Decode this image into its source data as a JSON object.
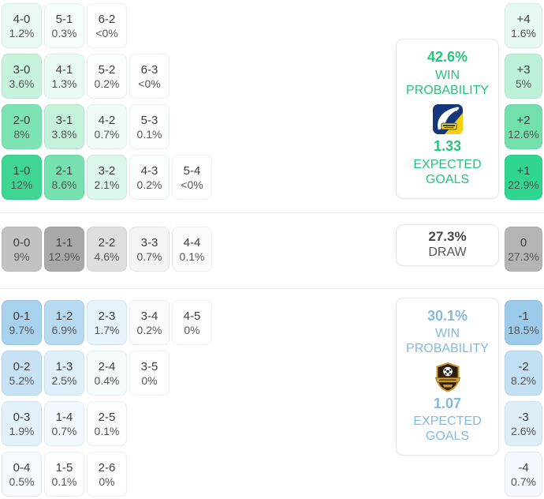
{
  "theme": {
    "home_accent": "#23c57e",
    "away_accent": "#82badf",
    "draw_text": "#474747",
    "separator": "#e9e9e9"
  },
  "home": {
    "card": {
      "probability": "42.6%",
      "probability_label": "WIN PROBABILITY",
      "expected_goals": "1.33",
      "expected_goals_label": "EXPECTED GOALS",
      "logo_icon": "delfin-club-crest"
    },
    "rows": [
      [
        {
          "score": "4-0",
          "pct": "1.2%",
          "bg": "#eafaf2"
        },
        {
          "score": "5-1",
          "pct": "0.3%",
          "bg": "#f8fefb"
        },
        {
          "score": "6-2",
          "pct": "<0%",
          "bg": "#ffffff"
        }
      ],
      [
        {
          "score": "3-0",
          "pct": "3.6%",
          "bg": "#c7f2de"
        },
        {
          "score": "4-1",
          "pct": "1.3%",
          "bg": "#e9faf2"
        },
        {
          "score": "5-2",
          "pct": "0.2%",
          "bg": "#fafefc"
        },
        {
          "score": "6-3",
          "pct": "<0%",
          "bg": "#ffffff"
        }
      ],
      [
        {
          "score": "2-0",
          "pct": "8%",
          "bg": "#7ee3b4"
        },
        {
          "score": "3-1",
          "pct": "3.8%",
          "bg": "#c4f1dc"
        },
        {
          "score": "4-2",
          "pct": "0.7%",
          "bg": "#f1fcf7"
        },
        {
          "score": "5-3",
          "pct": "0.1%",
          "bg": "#fbfefd"
        }
      ],
      [
        {
          "score": "1-0",
          "pct": "12%",
          "bg": "#3fd694"
        },
        {
          "score": "2-1",
          "pct": "8.6%",
          "bg": "#76e1af"
        },
        {
          "score": "3-2",
          "pct": "2.1%",
          "bg": "#dcf6e9"
        },
        {
          "score": "4-3",
          "pct": "0.2%",
          "bg": "#fafefc"
        },
        {
          "score": "5-4",
          "pct": "<0%",
          "bg": "#ffffff"
        }
      ]
    ],
    "goal_diff": [
      {
        "label": "+4",
        "pct": "1.6%",
        "bg": "#e6f9f0"
      },
      {
        "label": "+3",
        "pct": "5%",
        "bg": "#bdf0d8"
      },
      {
        "label": "+2",
        "pct": "12.6%",
        "bg": "#73e0ac"
      },
      {
        "label": "+1",
        "pct": "22.9%",
        "bg": "#2fd68f"
      }
    ]
  },
  "draw": {
    "card": {
      "probability": "27.3%",
      "label": "DRAW"
    },
    "rows": [
      [
        {
          "score": "0-0",
          "pct": "9%",
          "bg": "#c2c2c2"
        },
        {
          "score": "1-1",
          "pct": "12.9%",
          "bg": "#a9a9a9"
        },
        {
          "score": "2-2",
          "pct": "4.6%",
          "bg": "#dedede"
        },
        {
          "score": "3-3",
          "pct": "0.7%",
          "bg": "#f4f4f4"
        },
        {
          "score": "4-4",
          "pct": "0.1%",
          "bg": "#fcfcfc"
        }
      ]
    ],
    "goal_diff": [
      {
        "label": "0",
        "pct": "27.3%",
        "bg": "#b4b4b4"
      }
    ]
  },
  "away": {
    "card": {
      "probability": "30.1%",
      "probability_label": "WIN PROBABILITY",
      "expected_goals": "1.07",
      "expected_goals_label": "EXPECTED GOALS",
      "logo_icon": "gold-shield-club-crest"
    },
    "rows": [
      [
        {
          "score": "0-1",
          "pct": "9.7%",
          "bg": "#a7d1ec"
        },
        {
          "score": "1-2",
          "pct": "6.9%",
          "bg": "#b7daf0"
        },
        {
          "score": "2-3",
          "pct": "1.7%",
          "bg": "#e6f3fb"
        },
        {
          "score": "3-4",
          "pct": "0.2%",
          "bg": "#fafcfe"
        },
        {
          "score": "4-5",
          "pct": "0%",
          "bg": "#ffffff"
        }
      ],
      [
        {
          "score": "0-2",
          "pct": "5.2%",
          "bg": "#c6e2f4"
        },
        {
          "score": "1-3",
          "pct": "2.5%",
          "bg": "#deeff9"
        },
        {
          "score": "2-4",
          "pct": "0.4%",
          "bg": "#f5fafd"
        },
        {
          "score": "3-5",
          "pct": "0%",
          "bg": "#ffffff"
        }
      ],
      [
        {
          "score": "0-3",
          "pct": "1.9%",
          "bg": "#e3f1fb"
        },
        {
          "score": "1-4",
          "pct": "0.7%",
          "bg": "#f2f8fd"
        },
        {
          "score": "2-5",
          "pct": "0.1%",
          "bg": "#fbfdfe"
        }
      ],
      [
        {
          "score": "0-4",
          "pct": "0.5%",
          "bg": "#f4fafd"
        },
        {
          "score": "1-5",
          "pct": "0.1%",
          "bg": "#fbfdfe"
        },
        {
          "score": "2-6",
          "pct": "0%",
          "bg": "#ffffff"
        }
      ]
    ],
    "goal_diff": [
      {
        "label": "-1",
        "pct": "18.5%",
        "bg": "#9bcbe9"
      },
      {
        "label": "-2",
        "pct": "8.2%",
        "bg": "#c2dff3"
      },
      {
        "label": "-3",
        "pct": "2.6%",
        "bg": "#ddeef9"
      },
      {
        "label": "-4",
        "pct": "0.7%",
        "bg": "#f2f8fd"
      }
    ]
  }
}
